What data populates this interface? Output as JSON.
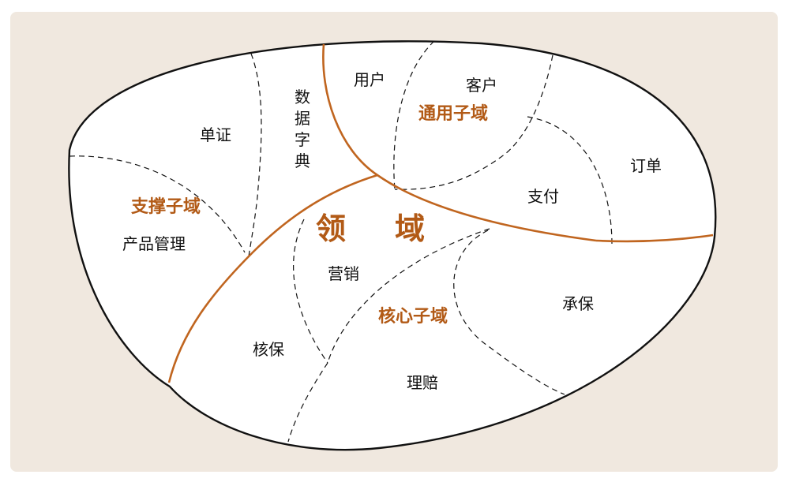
{
  "colors": {
    "frame_background": "#f0e8df",
    "region_fill": "#ffffff",
    "outline": "#111111",
    "boundary": "#c0651f",
    "accent_text": "#b25a16"
  },
  "domain": {
    "title_left": "领",
    "title_right": "域"
  },
  "subdomains": {
    "generic": "通用子域",
    "supporting": "支撑子域",
    "core": "核心子域"
  },
  "modules": {
    "user": "用户",
    "customer": "客户",
    "order": "订单",
    "payment": "支付",
    "voucher": "单证",
    "data_dictionary": [
      "数",
      "据",
      "字",
      "典"
    ],
    "product_management": "产品管理",
    "marketing": "营销",
    "underwriting": "核保",
    "policy_issuance": "承保",
    "claims": "理赔"
  }
}
